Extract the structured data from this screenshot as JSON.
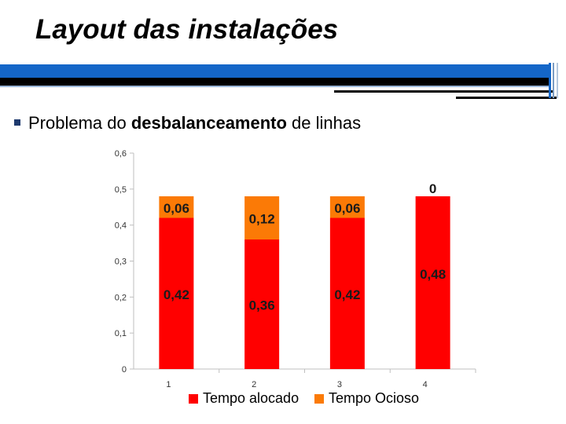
{
  "slide": {
    "title": "Layout das instalações",
    "bullet": {
      "before": "Problema do ",
      "bold": "desbalanceamento",
      "after": " de linhas"
    }
  },
  "colors": {
    "band_blue": "#1466c8",
    "band_dark": "#000000",
    "bullet_mark": "#1f3a6e",
    "series_alocado": "#ff0000",
    "series_ocioso": "#fb7a06"
  },
  "chart_data": {
    "type": "bar",
    "stacked": true,
    "categories": [
      "1",
      "2",
      "3",
      "4"
    ],
    "series": [
      {
        "name": "Tempo alocado",
        "values": [
          0.42,
          0.36,
          0.42,
          0.48
        ],
        "labels": [
          "0,42",
          "0,36",
          "0,42",
          "0,48"
        ],
        "color": "#ff0000"
      },
      {
        "name": "Tempo Ocioso",
        "values": [
          0.06,
          0.12,
          0.06,
          0.0
        ],
        "labels": [
          "0,06",
          "0,12",
          "0,06",
          "0"
        ],
        "color": "#fb7a06"
      }
    ],
    "ylim": [
      0,
      0.6
    ],
    "yticks": [
      "0",
      "0,1",
      "0,2",
      "0,3",
      "0,4",
      "0,5",
      "0,6"
    ],
    "grid": false,
    "legend_position": "bottom"
  }
}
